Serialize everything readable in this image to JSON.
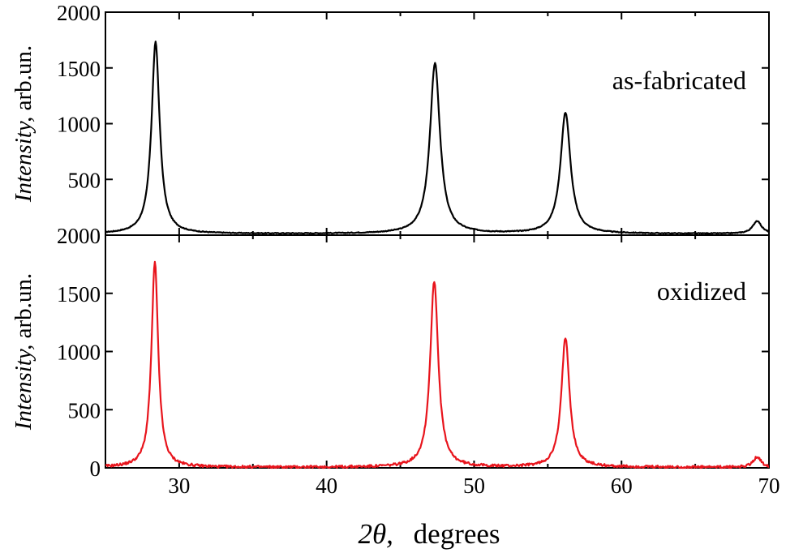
{
  "chart_data": [
    {
      "type": "line",
      "panel": "top",
      "annotation": "as-fabricated",
      "ylabel_italic": "Intensity,",
      "ylabel_rest": " arb.un.",
      "xlim": [
        25,
        70
      ],
      "ylim": [
        0,
        2000
      ],
      "yticks": [
        500,
        1000,
        1500,
        2000
      ],
      "xticks": [
        30,
        40,
        50,
        60,
        70
      ],
      "color": "#000000",
      "baseline": 15,
      "peaks": [
        {
          "x": 28.4,
          "height": 1720,
          "width": 0.42
        },
        {
          "x": 47.35,
          "height": 1530,
          "width": 0.52
        },
        {
          "x": 56.2,
          "height": 1085,
          "width": 0.52
        },
        {
          "x": 69.2,
          "height": 115,
          "width": 0.45
        }
      ],
      "series": [
        {
          "x": [
            25,
            28.4,
            47.35,
            56.2,
            69.2,
            70
          ],
          "y": [
            15,
            1735,
            1545,
            1100,
            130,
            15
          ]
        }
      ]
    },
    {
      "type": "line",
      "panel": "bottom",
      "annotation": "oxidized",
      "ylabel_italic": "Intensity,",
      "ylabel_rest": " arb.un.",
      "xlim": [
        25,
        70
      ],
      "ylim": [
        0,
        2000
      ],
      "yticks": [
        0,
        500,
        1000,
        1500,
        2000
      ],
      "xticks": [
        30,
        40,
        50,
        60,
        70
      ],
      "color": "#e8141c",
      "baseline": 5,
      "peaks": [
        {
          "x": 28.35,
          "height": 1765,
          "width": 0.35
        },
        {
          "x": 47.3,
          "height": 1600,
          "width": 0.42
        },
        {
          "x": 56.2,
          "height": 1115,
          "width": 0.42
        },
        {
          "x": 69.2,
          "height": 90,
          "width": 0.4
        }
      ],
      "series": [
        {
          "x": [
            25,
            28.35,
            47.3,
            56.2,
            69.2,
            70
          ],
          "y": [
            5,
            1770,
            1605,
            1120,
            95,
            5
          ]
        }
      ]
    }
  ],
  "xlabel_theta": "2θ,",
  "xlabel_rest": "degrees"
}
